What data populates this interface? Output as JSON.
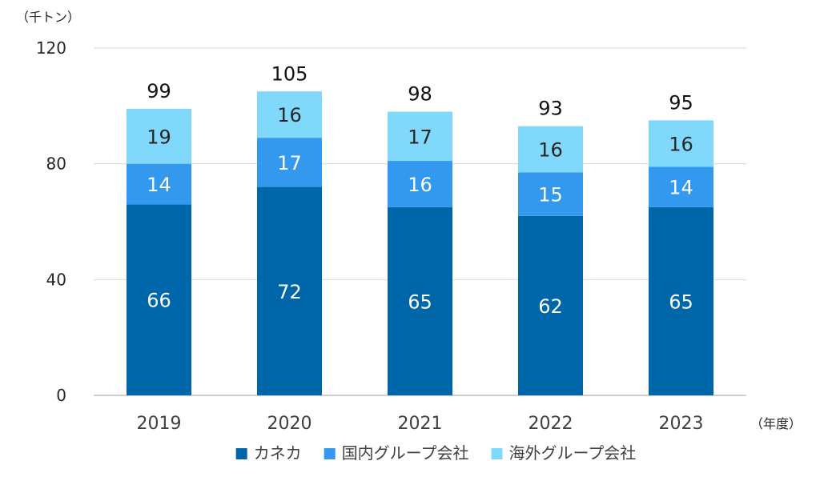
{
  "chart_data": {
    "type": "bar",
    "stacked": true,
    "y_unit": "（千トン）",
    "x_unit": "（年度）",
    "categories": [
      "2019",
      "2020",
      "2021",
      "2022",
      "2023"
    ],
    "series": [
      {
        "name": "カネカ",
        "values": [
          66,
          72,
          65,
          62,
          65
        ],
        "color": "#0066aa",
        "label_color": "#ffffff"
      },
      {
        "name": "国内グループ会社",
        "values": [
          14,
          17,
          16,
          15,
          14
        ],
        "color": "#3399ee",
        "label_color": "#ffffff"
      },
      {
        "name": "海外グループ会社",
        "values": [
          19,
          16,
          17,
          16,
          16
        ],
        "color": "#80d8fa",
        "label_color": "#262626"
      }
    ],
    "totals": [
      99,
      105,
      98,
      93,
      95
    ],
    "ylim": [
      0,
      120
    ],
    "yticks": [
      0,
      40,
      80,
      120
    ],
    "grid": true,
    "legend_position": "bottom"
  }
}
